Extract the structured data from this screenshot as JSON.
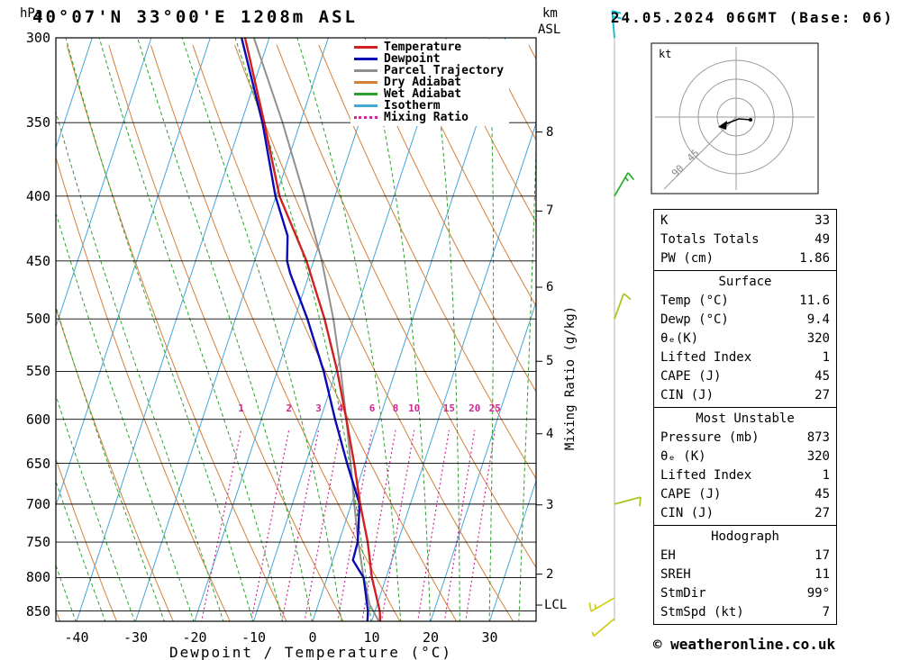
{
  "header": {
    "pressure_unit": "hPa",
    "title": "40°07'N 33°00'E 1208m ASL",
    "altitude_unit_top": "km",
    "altitude_unit_bottom": "ASL",
    "datetime": "24.05.2024 06GMT (Base: 06)"
  },
  "legend": {
    "items": [
      {
        "label": "Temperature",
        "color": "#d02020",
        "style": "solid"
      },
      {
        "label": "Dewpoint",
        "color": "#0a0ab4",
        "style": "solid"
      },
      {
        "label": "Parcel Trajectory",
        "color": "#909090",
        "style": "solid"
      },
      {
        "label": "Dry Adiabat",
        "color": "#d2813a",
        "style": "solid"
      },
      {
        "label": "Wet Adiabat",
        "color": "#2ca02c",
        "style": "solid"
      },
      {
        "label": "Isotherm",
        "color": "#45a6d8",
        "style": "solid"
      },
      {
        "label": "Mixing Ratio",
        "color": "#d02898",
        "style": "dotted"
      }
    ]
  },
  "axes": {
    "pressure_ticks": [
      300,
      350,
      400,
      450,
      500,
      550,
      600,
      650,
      700,
      750,
      800,
      850
    ],
    "temp_ticks": [
      -40,
      -30,
      -20,
      -10,
      0,
      10,
      20,
      30
    ],
    "x_label": "Dewpoint / Temperature (°C)",
    "km_ticks": [
      2,
      3,
      4,
      5,
      6,
      7,
      8
    ],
    "lcl_label": "LCL",
    "mixing_axis_label": "Mixing Ratio (g/kg)",
    "mixing_ratio_values": [
      1,
      2,
      3,
      4,
      6,
      8,
      10,
      15,
      20,
      25
    ]
  },
  "chart_data": {
    "type": "line",
    "subtype": "skew-t-log-p-sounding",
    "xlabel": "Dewpoint / Temperature (°C)",
    "ylabel": "Pressure (hPa)",
    "pressure_range": [
      300,
      868
    ],
    "temp_tick_range": [
      -40,
      30
    ],
    "series": [
      {
        "name": "Temperature",
        "color": "#d02020",
        "points": [
          [
            870,
            11.6
          ],
          [
            850,
            10.8
          ],
          [
            800,
            7.6
          ],
          [
            750,
            4.9
          ],
          [
            700,
            1.5
          ],
          [
            650,
            -1.8
          ],
          [
            600,
            -5.6
          ],
          [
            550,
            -9.8
          ],
          [
            500,
            -14.9
          ],
          [
            450,
            -21.2
          ],
          [
            400,
            -29.4
          ],
          [
            350,
            -36.1
          ],
          [
            300,
            -44.1
          ]
        ]
      },
      {
        "name": "Dewpoint",
        "color": "#0a0ab4",
        "points": [
          [
            870,
            9.4
          ],
          [
            850,
            8.8
          ],
          [
            800,
            6.2
          ],
          [
            775,
            3.4
          ],
          [
            750,
            3.2
          ],
          [
            700,
            1.4
          ],
          [
            650,
            -3.0
          ],
          [
            600,
            -7.5
          ],
          [
            550,
            -12.1
          ],
          [
            500,
            -17.8
          ],
          [
            460,
            -23.3
          ],
          [
            450,
            -24.5
          ],
          [
            430,
            -25.8
          ],
          [
            400,
            -30.1
          ],
          [
            350,
            -36.4
          ],
          [
            300,
            -44.7
          ]
        ]
      },
      {
        "name": "Parcel Trajectory",
        "color": "#909090",
        "points": [
          [
            870,
            11.6
          ],
          [
            840,
            8.7
          ],
          [
            800,
            6.2
          ],
          [
            750,
            3.3
          ],
          [
            700,
            0.5
          ],
          [
            650,
            -2.4
          ],
          [
            600,
            -5.6
          ],
          [
            550,
            -9.2
          ],
          [
            500,
            -13.4
          ],
          [
            450,
            -18.6
          ],
          [
            400,
            -25.2
          ],
          [
            350,
            -33.0
          ],
          [
            300,
            -42.6
          ]
        ]
      }
    ]
  },
  "wind_barbs": [
    {
      "p": 300,
      "color": "#00c0d0",
      "angle": -95,
      "full": 2,
      "half": 0
    },
    {
      "p": 400,
      "color": "#30b030",
      "angle": -60,
      "full": 1,
      "half": 1
    },
    {
      "p": 500,
      "color": "#a8c820",
      "angle": -70,
      "full": 1,
      "half": 0
    },
    {
      "p": 700,
      "color": "#a8c820",
      "angle": -15,
      "full": 1,
      "half": 0
    },
    {
      "p": 830,
      "color": "#d0d020",
      "angle": 150,
      "full": 1,
      "half": 1
    },
    {
      "p": 862,
      "color": "#d0d020",
      "angle": 140,
      "full": 0,
      "half": 1
    }
  ],
  "hodograph": {
    "unit_label": "kt",
    "ring_labels": [
      "45",
      "90"
    ]
  },
  "table": {
    "sections": [
      {
        "rows": [
          {
            "label": "K",
            "value": "33"
          },
          {
            "label": "Totals Totals",
            "value": "49"
          },
          {
            "label": "PW (cm)",
            "value": "1.86"
          }
        ]
      },
      {
        "title": "Surface",
        "rows": [
          {
            "label": "Temp (°C)",
            "value": "11.6"
          },
          {
            "label": "Dewp (°C)",
            "value": "9.4"
          },
          {
            "label": "θₑ(K)",
            "value": "320"
          },
          {
            "label": "Lifted Index",
            "value": "1"
          },
          {
            "label": "CAPE (J)",
            "value": "45"
          },
          {
            "label": "CIN (J)",
            "value": "27"
          }
        ]
      },
      {
        "title": "Most Unstable",
        "rows": [
          {
            "label": "Pressure (mb)",
            "value": "873"
          },
          {
            "label": "θₑ (K)",
            "value": "320"
          },
          {
            "label": "Lifted Index",
            "value": "1"
          },
          {
            "label": "CAPE (J)",
            "value": "45"
          },
          {
            "label": "CIN (J)",
            "value": "27"
          }
        ]
      },
      {
        "title": "Hodograph",
        "rows": [
          {
            "label": "EH",
            "value": "17"
          },
          {
            "label": "SREH",
            "value": "11"
          },
          {
            "label": "StmDir",
            "value": "99°"
          },
          {
            "label": "StmSpd (kt)",
            "value": "7"
          }
        ]
      }
    ]
  },
  "footer": {
    "copyright": "© weatheronline.co.uk"
  }
}
